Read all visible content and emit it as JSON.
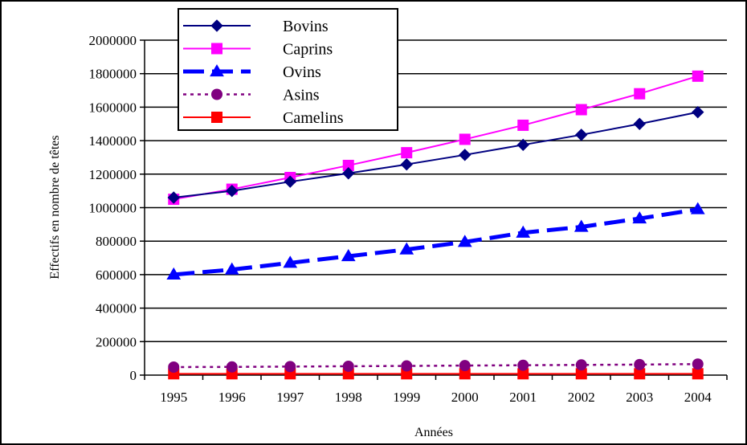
{
  "chart_data": {
    "type": "line",
    "title": "",
    "xlabel": "Années",
    "ylabel": "Effectifs en nombre de têtes",
    "categories": [
      "1995",
      "1996",
      "1997",
      "1998",
      "1999",
      "2000",
      "2001",
      "2002",
      "2003",
      "2004"
    ],
    "ylim": [
      0,
      2000000
    ],
    "yticks": [
      "0",
      "200000",
      "400000",
      "600000",
      "800000",
      "1000000",
      "1200000",
      "1400000",
      "1600000",
      "1800000",
      "2000000"
    ],
    "grid": "horizontal",
    "legend_placement": "top-left",
    "series": [
      {
        "name": "Bovins",
        "color": "#000080",
        "marker": "diamond",
        "dash": "solid",
        "values": [
          1060000,
          1100000,
          1155000,
          1205000,
          1258000,
          1315000,
          1375000,
          1435000,
          1500000,
          1570000
        ]
      },
      {
        "name": "Caprins",
        "color": "#ff00ff",
        "marker": "square",
        "dash": "solid",
        "values": [
          1050000,
          1110000,
          1180000,
          1252000,
          1328000,
          1408000,
          1492000,
          1585000,
          1680000,
          1785000
        ]
      },
      {
        "name": "Ovins",
        "color": "#0000ff",
        "marker": "triangle",
        "dash": "dashed",
        "values": [
          600000,
          630000,
          670000,
          710000,
          750000,
          795000,
          850000,
          885000,
          935000,
          990000
        ]
      },
      {
        "name": "Asins",
        "color": "#800080",
        "marker": "circle",
        "dash": "dotted",
        "values": [
          48000,
          49000,
          51000,
          53000,
          55000,
          57000,
          59000,
          61000,
          63000,
          66000
        ]
      },
      {
        "name": "Camelins",
        "color": "#ff0000",
        "marker": "square",
        "dash": "solid",
        "values": [
          8000,
          8000,
          8000,
          8000,
          8000,
          8000,
          8000,
          8000,
          8000,
          8000
        ]
      }
    ]
  }
}
